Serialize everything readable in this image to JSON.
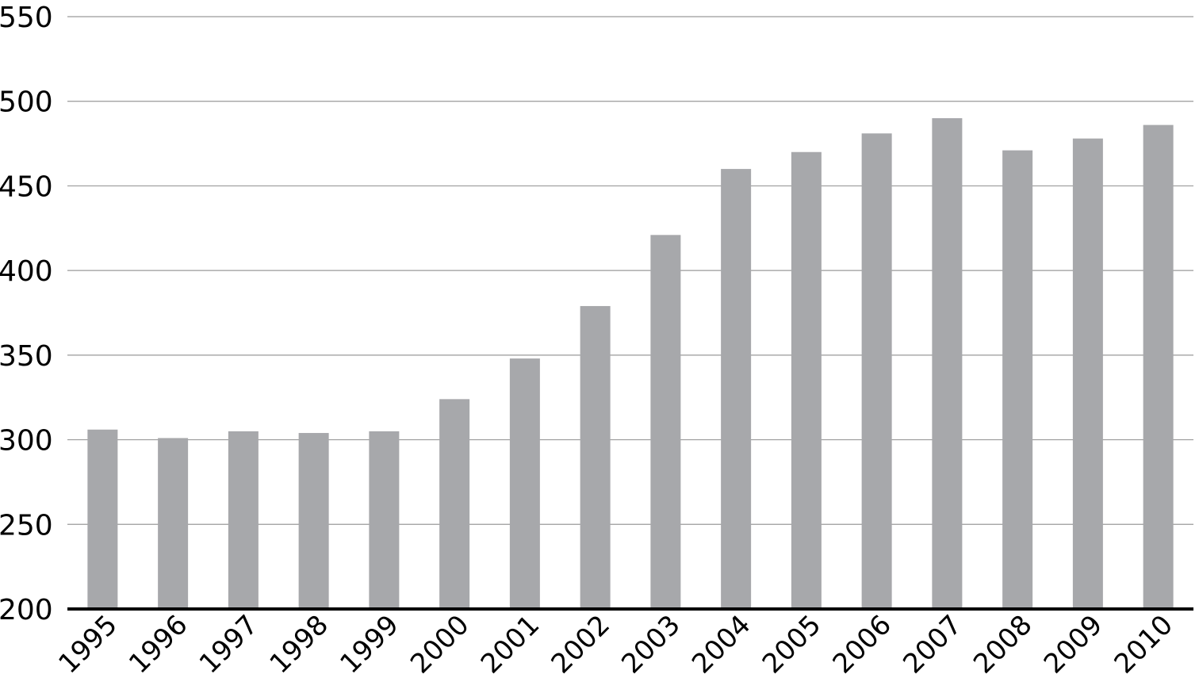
{
  "chart_data": {
    "type": "bar",
    "title": "",
    "xlabel": "",
    "ylabel": "",
    "categories": [
      "1995",
      "1996",
      "1997",
      "1998",
      "1999",
      "2000",
      "2001",
      "2002",
      "2003",
      "2004",
      "2005",
      "2006",
      "2007",
      "2008",
      "2009",
      "2010"
    ],
    "values": [
      306,
      301,
      305,
      304,
      305,
      324,
      348,
      379,
      421,
      460,
      470,
      481,
      490,
      471,
      478,
      486
    ],
    "ylim": [
      200,
      550
    ],
    "yticks": [
      "200",
      "250",
      "300",
      "350",
      "400",
      "450",
      "500",
      "550"
    ],
    "grid": true,
    "colors": {
      "bar": "#a7a8ab",
      "grid": "#9a9a9a",
      "axis": "#000000"
    }
  }
}
